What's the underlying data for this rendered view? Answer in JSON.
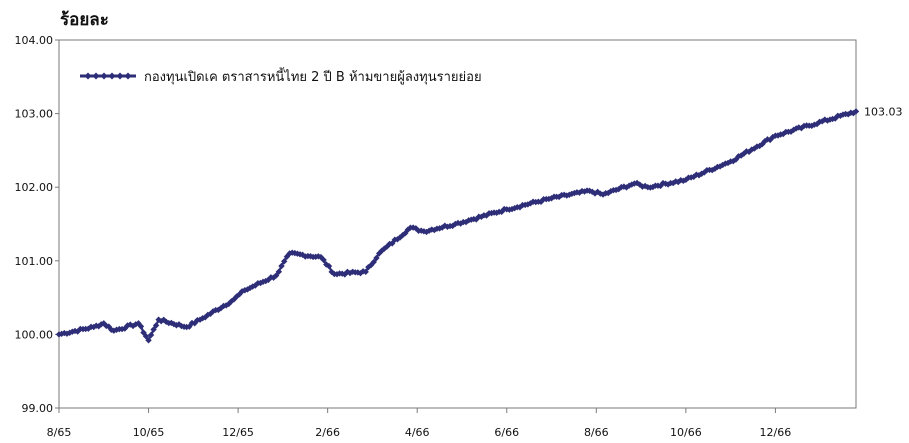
{
  "chart_data": {
    "type": "line",
    "ylabel": "ร้อยละ",
    "ylim": [
      99.0,
      104.0
    ],
    "y_ticks": [
      "104.00",
      "103.00",
      "102.00",
      "101.00",
      "100.00",
      "99.00"
    ],
    "x_ticks": [
      "8/65",
      "10/65",
      "12/65",
      "2/66",
      "4/66",
      "6/66",
      "8/66",
      "10/66",
      "12/66"
    ],
    "legend_position": "top-left",
    "grid": false,
    "series": [
      {
        "name": "กองทุนเปิดเค ตราสารหนี้ไทย 2 ปี B ห้ามขายผู้ลงทุนรายย่อย",
        "color": "#2e2e78",
        "end_label": "103.03",
        "points": [
          [
            "8/65",
            100.0
          ],
          [
            "9/65",
            100.1
          ],
          [
            "9/65",
            100.15
          ],
          [
            "9/65",
            100.05
          ],
          [
            "10/65",
            100.15
          ],
          [
            "10/65",
            99.92
          ],
          [
            "10/65",
            100.2
          ],
          [
            "11/65",
            100.1
          ],
          [
            "11/65",
            100.2
          ],
          [
            "12/65",
            100.45
          ],
          [
            "12/65",
            100.6
          ],
          [
            "1/66",
            100.8
          ],
          [
            "1/66",
            101.1
          ],
          [
            "2/66",
            101.05
          ],
          [
            "2/66",
            100.82
          ],
          [
            "3/66",
            100.85
          ],
          [
            "3/66",
            101.1
          ],
          [
            "4/66",
            101.45
          ],
          [
            "4/66",
            101.4
          ],
          [
            "5/66",
            101.5
          ],
          [
            "5/66",
            101.55
          ],
          [
            "6/66",
            101.7
          ],
          [
            "7/66",
            101.85
          ],
          [
            "8/66",
            101.95
          ],
          [
            "8/66",
            101.9
          ],
          [
            "9/66",
            102.05
          ],
          [
            "9/66",
            102.0
          ],
          [
            "10/66",
            102.1
          ],
          [
            "11/66",
            102.35
          ],
          [
            "12/66",
            102.7
          ],
          [
            "1/67",
            103.03
          ]
        ]
      }
    ]
  }
}
